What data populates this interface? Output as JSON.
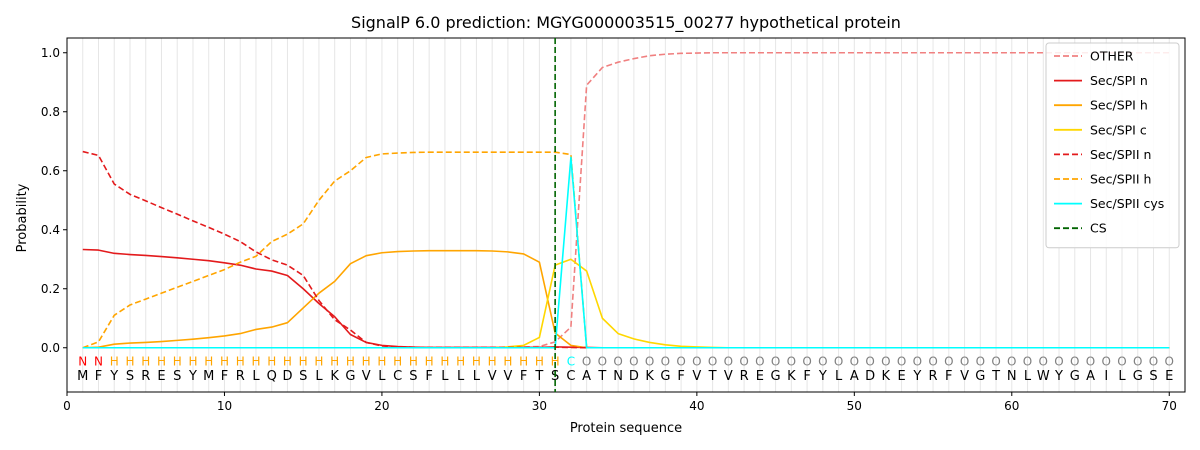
{
  "chart_data": {
    "type": "line",
    "title": "SignalP 6.0 prediction: MGYG000003515_00277 hypothetical protein",
    "xlabel": "Protein sequence",
    "ylabel": "Probability",
    "xlim": [
      0,
      71
    ],
    "ylim": [
      -0.15,
      1.05
    ],
    "x_ticks": [
      0,
      10,
      20,
      30,
      40,
      50,
      60,
      70
    ],
    "y_ticks": [
      0.0,
      0.2,
      0.4,
      0.6,
      0.8,
      1.0
    ],
    "x_tick_labels": [
      "0",
      "10",
      "20",
      "30",
      "40",
      "50",
      "60",
      "70"
    ],
    "y_tick_labels": [
      "0.0",
      "0.2",
      "0.4",
      "0.6",
      "0.8",
      "1.0"
    ],
    "grid": "vertical lines at each residue",
    "legend_position": "top-right",
    "sequence": [
      "M",
      "F",
      "Y",
      "S",
      "R",
      "E",
      "S",
      "Y",
      "M",
      "F",
      "R",
      "L",
      "Q",
      "D",
      "S",
      "L",
      "K",
      "G",
      "V",
      "L",
      "C",
      "S",
      "F",
      "L",
      "L",
      "L",
      "V",
      "V",
      "F",
      "T",
      "S",
      "C",
      "A",
      "T",
      "N",
      "D",
      "K",
      "G",
      "F",
      "V",
      "T",
      "V",
      "R",
      "E",
      "G",
      "K",
      "F",
      "Y",
      "L",
      "A",
      "D",
      "K",
      "E",
      "Y",
      "R",
      "F",
      "V",
      "G",
      "T",
      "N",
      "L",
      "W",
      "Y",
      "G",
      "A",
      "I",
      "L",
      "G",
      "S",
      "E"
    ],
    "regions": [
      "N",
      "N",
      "H",
      "H",
      "H",
      "H",
      "H",
      "H",
      "H",
      "H",
      "H",
      "H",
      "H",
      "H",
      "H",
      "H",
      "H",
      "H",
      "H",
      "H",
      "H",
      "H",
      "H",
      "H",
      "H",
      "H",
      "H",
      "H",
      "H",
      "H",
      "H",
      "C",
      "O",
      "O",
      "O",
      "O",
      "O",
      "O",
      "O",
      "O",
      "O",
      "O",
      "O",
      "O",
      "O",
      "O",
      "O",
      "O",
      "O",
      "O",
      "O",
      "O",
      "O",
      "O",
      "O",
      "O",
      "O",
      "O",
      "O",
      "O",
      "O",
      "O",
      "O",
      "O",
      "O",
      "O",
      "O",
      "O",
      "O",
      "O"
    ],
    "region_colors": {
      "N": "#ff0000",
      "H": "#ffa500",
      "C": "#00ffff",
      "O": "#808080"
    },
    "cleavage_site": {
      "name": "CS",
      "x": 31,
      "color": "#006400"
    },
    "series": [
      {
        "name": "OTHER",
        "color": "#f08080",
        "dash": "dashed",
        "values": [
          0.0,
          0.0,
          0.0,
          0.0,
          0.0,
          0.0,
          0.0,
          0.0,
          0.0,
          0.0,
          0.0,
          0.0,
          0.0,
          0.0,
          0.0,
          0.0,
          0.0,
          0.0,
          0.0,
          0.0,
          0.0,
          0.0,
          0.0,
          0.0,
          0.0,
          0.0,
          0.0,
          0.002,
          0.003,
          0.004,
          0.02,
          0.07,
          0.89,
          0.95,
          0.968,
          0.98,
          0.99,
          0.995,
          0.998,
          0.999,
          1.0,
          1.0,
          1.0,
          1.0,
          1.0,
          1.0,
          1.0,
          1.0,
          1.0,
          1.0,
          1.0,
          1.0,
          1.0,
          1.0,
          1.0,
          1.0,
          1.0,
          1.0,
          1.0,
          1.0,
          1.0,
          1.0,
          1.0,
          1.0,
          1.0,
          1.0,
          1.0,
          1.0,
          1.0,
          1.0
        ]
      },
      {
        "name": "Sec/SPI n",
        "color": "#e31a1c",
        "dash": "solid",
        "values": [
          0.333,
          0.331,
          0.32,
          0.316,
          0.313,
          0.309,
          0.305,
          0.3,
          0.295,
          0.288,
          0.28,
          0.267,
          0.26,
          0.245,
          0.2,
          0.15,
          0.105,
          0.045,
          0.018,
          0.008,
          0.004,
          0.002,
          0.001,
          0.001,
          0.001,
          0.001,
          0.001,
          0.001,
          0.001,
          0.001,
          0.003,
          0.002,
          0.001,
          0.0,
          0.0,
          0.0,
          0.0,
          0.0,
          0.0,
          0.0,
          0.0,
          0.0,
          0.0,
          0.0,
          0.0,
          0.0,
          0.0,
          0.0,
          0.0,
          0.0,
          0.0,
          0.0,
          0.0,
          0.0,
          0.0,
          0.0,
          0.0,
          0.0,
          0.0,
          0.0,
          0.0,
          0.0,
          0.0,
          0.0,
          0.0,
          0.0,
          0.0,
          0.0,
          0.0,
          0.0
        ]
      },
      {
        "name": "Sec/SPI h",
        "color": "#ffa500",
        "dash": "solid",
        "values": [
          0.0,
          0.002,
          0.012,
          0.016,
          0.018,
          0.021,
          0.025,
          0.029,
          0.034,
          0.04,
          0.048,
          0.062,
          0.07,
          0.085,
          0.135,
          0.185,
          0.225,
          0.285,
          0.312,
          0.322,
          0.326,
          0.328,
          0.329,
          0.329,
          0.329,
          0.329,
          0.328,
          0.325,
          0.318,
          0.29,
          0.05,
          0.008,
          0.0,
          0.0,
          0.0,
          0.0,
          0.0,
          0.0,
          0.0,
          0.0,
          0.0,
          0.0,
          0.0,
          0.0,
          0.0,
          0.0,
          0.0,
          0.0,
          0.0,
          0.0,
          0.0,
          0.0,
          0.0,
          0.0,
          0.0,
          0.0,
          0.0,
          0.0,
          0.0,
          0.0,
          0.0,
          0.0,
          0.0,
          0.0,
          0.0,
          0.0,
          0.0,
          0.0,
          0.0,
          0.0
        ]
      },
      {
        "name": "Sec/SPI c",
        "color": "#ffd700",
        "dash": "solid",
        "values": [
          0.0,
          0.0,
          0.0,
          0.0,
          0.0,
          0.0,
          0.0,
          0.0,
          0.0,
          0.0,
          0.0,
          0.0,
          0.0,
          0.0,
          0.0,
          0.0,
          0.0,
          0.0,
          0.0,
          0.0,
          0.0,
          0.0,
          0.0,
          0.0,
          0.0,
          0.0,
          0.0,
          0.003,
          0.008,
          0.035,
          0.28,
          0.3,
          0.26,
          0.1,
          0.048,
          0.03,
          0.018,
          0.01,
          0.005,
          0.003,
          0.001,
          0.0,
          0.0,
          0.0,
          0.0,
          0.0,
          0.0,
          0.0,
          0.0,
          0.0,
          0.0,
          0.0,
          0.0,
          0.0,
          0.0,
          0.0,
          0.0,
          0.0,
          0.0,
          0.0,
          0.0,
          0.0,
          0.0,
          0.0,
          0.0,
          0.0,
          0.0,
          0.0,
          0.0,
          0.0
        ]
      },
      {
        "name": "Sec/SPII n",
        "color": "#e31a1c",
        "dash": "dashed",
        "values": [
          0.665,
          0.652,
          0.555,
          0.52,
          0.498,
          0.475,
          0.453,
          0.43,
          0.408,
          0.385,
          0.36,
          0.325,
          0.298,
          0.28,
          0.245,
          0.16,
          0.095,
          0.06,
          0.018,
          0.006,
          0.003,
          0.002,
          0.001,
          0.001,
          0.001,
          0.001,
          0.001,
          0.001,
          0.001,
          0.001,
          0.002,
          0.001,
          0.0,
          0.0,
          0.0,
          0.0,
          0.0,
          0.0,
          0.0,
          0.0,
          0.0,
          0.0,
          0.0,
          0.0,
          0.0,
          0.0,
          0.0,
          0.0,
          0.0,
          0.0,
          0.0,
          0.0,
          0.0,
          0.0,
          0.0,
          0.0,
          0.0,
          0.0,
          0.0,
          0.0,
          0.0,
          0.0,
          0.0,
          0.0,
          0.0,
          0.0,
          0.0,
          0.0,
          0.0,
          0.0
        ]
      },
      {
        "name": "Sec/SPII h",
        "color": "#ffa500",
        "dash": "dashed",
        "values": [
          0.0,
          0.02,
          0.11,
          0.145,
          0.165,
          0.185,
          0.205,
          0.225,
          0.245,
          0.265,
          0.29,
          0.31,
          0.36,
          0.385,
          0.42,
          0.5,
          0.565,
          0.6,
          0.645,
          0.657,
          0.66,
          0.662,
          0.663,
          0.663,
          0.663,
          0.663,
          0.663,
          0.663,
          0.663,
          0.663,
          0.663,
          0.655,
          0.0,
          0.0,
          0.0,
          0.0,
          0.0,
          0.0,
          0.0,
          0.0,
          0.0,
          0.0,
          0.0,
          0.0,
          0.0,
          0.0,
          0.0,
          0.0,
          0.0,
          0.0,
          0.0,
          0.0,
          0.0,
          0.0,
          0.0,
          0.0,
          0.0,
          0.0,
          0.0,
          0.0,
          0.0,
          0.0,
          0.0,
          0.0,
          0.0,
          0.0,
          0.0,
          0.0,
          0.0,
          0.0
        ]
      },
      {
        "name": "Sec/SPII cys",
        "color": "#00ffff",
        "dash": "solid",
        "values": [
          0.0,
          0.0,
          0.0,
          0.0,
          0.0,
          0.0,
          0.0,
          0.0,
          0.0,
          0.0,
          0.0,
          0.0,
          0.0,
          0.0,
          0.0,
          0.0,
          0.0,
          0.0,
          0.0,
          0.0,
          0.0,
          0.0,
          0.0,
          0.0,
          0.0,
          0.0,
          0.0,
          0.0,
          0.0,
          0.0,
          0.0,
          0.645,
          0.0,
          0.0,
          0.0,
          0.0,
          0.0,
          0.0,
          0.0,
          0.0,
          0.0,
          0.0,
          0.0,
          0.0,
          0.0,
          0.0,
          0.0,
          0.0,
          0.0,
          0.0,
          0.0,
          0.0,
          0.0,
          0.0,
          0.0,
          0.0,
          0.0,
          0.0,
          0.0,
          0.0,
          0.0,
          0.0,
          0.0,
          0.0,
          0.0,
          0.0,
          0.0,
          0.0,
          0.0,
          0.0
        ]
      }
    ]
  }
}
